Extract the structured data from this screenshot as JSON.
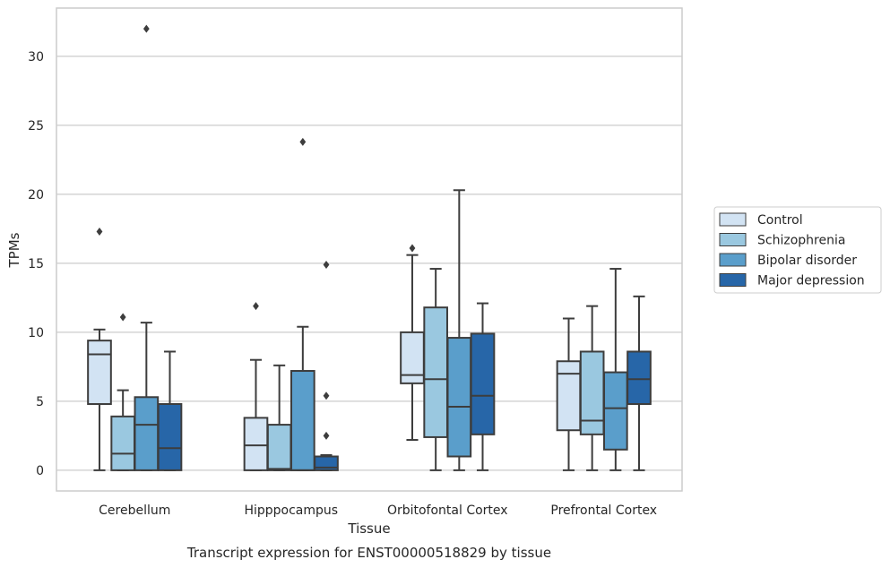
{
  "chart_data": {
    "type": "box",
    "xlabel": "Tissue",
    "ylabel": "TPMs",
    "caption": "Transcript expression for ENST00000518829 by tissue",
    "categories": [
      "Cerebellum",
      "Hipppocampus",
      "Orbitofontal Cortex",
      "Prefrontal Cortex"
    ],
    "ylim": [
      -1.5,
      33.5
    ],
    "yticks": [
      0,
      5,
      10,
      15,
      20,
      25,
      30
    ],
    "grid": "horizontal",
    "legend_position": "right",
    "series": [
      {
        "name": "Control",
        "color": "#d2e3f3",
        "boxes": [
          {
            "whislo": 0,
            "q1": 4.8,
            "med": 8.4,
            "q3": 9.4,
            "whishi": 10.2,
            "fliers": [
              17.3
            ]
          },
          {
            "whislo": 0,
            "q1": 0,
            "med": 1.8,
            "q3": 3.8,
            "whishi": 8.0,
            "fliers": [
              11.9
            ]
          },
          {
            "whislo": 2.2,
            "q1": 6.3,
            "med": 6.9,
            "q3": 10.0,
            "whishi": 15.6,
            "fliers": [
              16.1
            ]
          },
          {
            "whislo": 0,
            "q1": 2.9,
            "med": 7.0,
            "q3": 7.9,
            "whishi": 11.0,
            "fliers": []
          }
        ]
      },
      {
        "name": "Schizophrenia",
        "color": "#9ac8e0",
        "boxes": [
          {
            "whislo": 0,
            "q1": 0,
            "med": 1.2,
            "q3": 3.9,
            "whishi": 5.8,
            "fliers": [
              11.1
            ]
          },
          {
            "whislo": 0,
            "q1": 0,
            "med": 0.1,
            "q3": 3.3,
            "whishi": 7.6,
            "fliers": []
          },
          {
            "whislo": 0,
            "q1": 2.4,
            "med": 6.6,
            "q3": 11.8,
            "whishi": 14.6,
            "fliers": []
          },
          {
            "whislo": 0,
            "q1": 2.6,
            "med": 3.6,
            "q3": 8.6,
            "whishi": 11.9,
            "fliers": []
          }
        ]
      },
      {
        "name": "Bipolar disorder",
        "color": "#5a9ecb",
        "boxes": [
          {
            "whislo": 0,
            "q1": 0,
            "med": 3.3,
            "q3": 5.3,
            "whishi": 10.7,
            "fliers": [
              32.0
            ]
          },
          {
            "whislo": 0,
            "q1": 0,
            "med": 0,
            "q3": 7.2,
            "whishi": 10.4,
            "fliers": [
              23.8
            ]
          },
          {
            "whislo": 0,
            "q1": 1.0,
            "med": 4.6,
            "q3": 9.6,
            "whishi": 20.3,
            "fliers": []
          },
          {
            "whislo": 0,
            "q1": 1.5,
            "med": 4.5,
            "q3": 7.1,
            "whishi": 14.6,
            "fliers": []
          }
        ]
      },
      {
        "name": "Major depression",
        "color": "#2766a8",
        "boxes": [
          {
            "whislo": 0,
            "q1": 0,
            "med": 1.6,
            "q3": 4.8,
            "whishi": 8.6,
            "fliers": []
          },
          {
            "whislo": 0,
            "q1": 0,
            "med": 0.2,
            "q3": 1.0,
            "whishi": 1.1,
            "fliers": [
              2.5,
              5.4,
              14.9
            ]
          },
          {
            "whislo": 0,
            "q1": 2.6,
            "med": 5.4,
            "q3": 9.9,
            "whishi": 12.1,
            "fliers": []
          },
          {
            "whislo": 0,
            "q1": 4.8,
            "med": 6.6,
            "q3": 8.6,
            "whishi": 12.6,
            "fliers": []
          }
        ]
      }
    ]
  }
}
